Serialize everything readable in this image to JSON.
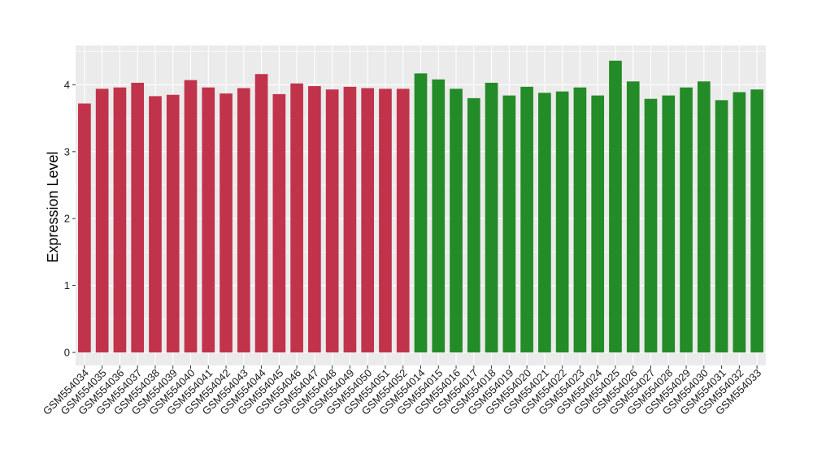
{
  "chart_data": {
    "type": "bar",
    "title": "",
    "xlabel": "",
    "ylabel": "Expression Level",
    "ylim": [
      0,
      4.5
    ],
    "yticks": [
      0,
      1,
      2,
      3,
      4
    ],
    "grid": true,
    "legend": "none",
    "categories": [
      "GSM554034",
      "GSM554035",
      "GSM554036",
      "GSM554037",
      "GSM554038",
      "GSM554039",
      "GSM554040",
      "GSM554041",
      "GSM554042",
      "GSM554043",
      "GSM554044",
      "GSM554045",
      "GSM554046",
      "GSM554047",
      "GSM554048",
      "GSM554049",
      "GSM554050",
      "GSM554051",
      "GSM554052",
      "GSM554014",
      "GSM554015",
      "GSM554016",
      "GSM554017",
      "GSM554018",
      "GSM554019",
      "GSM554020",
      "GSM554021",
      "GSM554022",
      "GSM554023",
      "GSM554024",
      "GSM554025",
      "GSM554026",
      "GSM554027",
      "GSM554028",
      "GSM554029",
      "GSM554030",
      "GSM554031",
      "GSM554032",
      "GSM554033"
    ],
    "values": [
      3.72,
      3.94,
      3.96,
      4.03,
      3.83,
      3.85,
      4.07,
      3.96,
      3.87,
      3.95,
      4.16,
      3.86,
      4.02,
      3.98,
      3.93,
      3.97,
      3.95,
      3.94,
      3.94,
      4.17,
      4.08,
      3.94,
      3.8,
      4.03,
      3.84,
      3.97,
      3.88,
      3.9,
      3.96,
      3.84,
      4.36,
      4.05,
      3.79,
      3.84,
      3.96,
      4.05,
      3.77,
      3.89,
      3.93
    ],
    "groups": [
      {
        "count": 19,
        "color": "#c1334b"
      },
      {
        "count": 20,
        "color": "#238b27"
      }
    ],
    "colors": {
      "panel_background": "#ebebeb",
      "gridline": "#ffffff"
    }
  }
}
